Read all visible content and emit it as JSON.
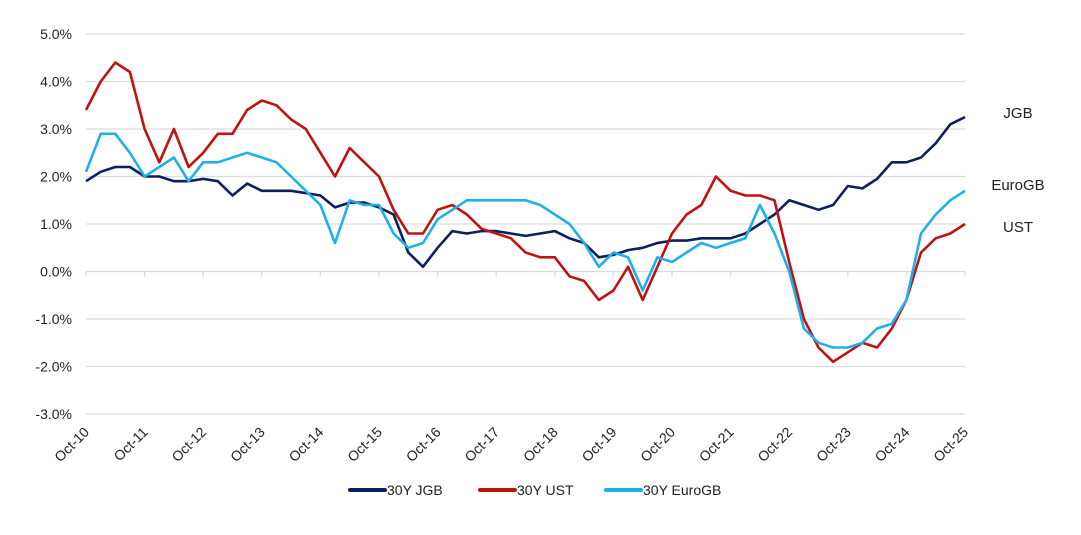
{
  "chart_data": {
    "type": "line",
    "title": "",
    "xlabel": "",
    "ylabel": "",
    "ylim": [
      -3.0,
      5.0
    ],
    "y_ticks": [
      "-3.0%",
      "-2.0%",
      "-1.0%",
      "0.0%",
      "1.0%",
      "2.0%",
      "3.0%",
      "4.0%",
      "5.0%"
    ],
    "x_ticks": [
      "Oct-10",
      "Oct-11",
      "Oct-12",
      "Oct-13",
      "Oct-14",
      "Oct-15",
      "Oct-16",
      "Oct-17",
      "Oct-18",
      "Oct-19",
      "Oct-20",
      "Oct-21",
      "Oct-22",
      "Oct-23",
      "Oct-24",
      "Oct-25"
    ],
    "xlim": [
      "2010-10",
      "2025-10"
    ],
    "grid": "horizontal",
    "legend_placement": "bottom",
    "x": [
      "2010-10",
      "2011-01",
      "2011-04",
      "2011-07",
      "2011-10",
      "2012-01",
      "2012-04",
      "2012-07",
      "2012-10",
      "2013-01",
      "2013-04",
      "2013-07",
      "2013-10",
      "2014-01",
      "2014-04",
      "2014-07",
      "2014-10",
      "2015-01",
      "2015-04",
      "2015-07",
      "2015-10",
      "2016-01",
      "2016-04",
      "2016-07",
      "2016-10",
      "2017-01",
      "2017-04",
      "2017-07",
      "2017-10",
      "2018-01",
      "2018-04",
      "2018-07",
      "2018-10",
      "2019-01",
      "2019-04",
      "2019-07",
      "2019-10",
      "2020-01",
      "2020-04",
      "2020-07",
      "2020-10",
      "2021-01",
      "2021-04",
      "2021-07",
      "2021-10",
      "2022-01",
      "2022-04",
      "2022-07",
      "2022-10",
      "2023-01",
      "2023-04",
      "2023-07",
      "2023-10",
      "2024-01",
      "2024-04",
      "2024-07",
      "2024-10",
      "2025-01",
      "2025-04",
      "2025-07",
      "2025-10"
    ],
    "series": [
      {
        "name": "30Y JGB",
        "end_label": "JGB",
        "color": "#0d1f5c",
        "values": [
          1.9,
          2.1,
          2.2,
          2.2,
          2.0,
          2.0,
          1.9,
          1.9,
          1.95,
          1.9,
          1.6,
          1.85,
          1.7,
          1.7,
          1.7,
          1.65,
          1.6,
          1.35,
          1.45,
          1.45,
          1.35,
          1.2,
          0.4,
          0.1,
          0.5,
          0.85,
          0.8,
          0.85,
          0.85,
          0.8,
          0.75,
          0.8,
          0.85,
          0.7,
          0.6,
          0.3,
          0.35,
          0.45,
          0.5,
          0.6,
          0.65,
          0.65,
          0.7,
          0.7,
          0.7,
          0.8,
          1.0,
          1.2,
          1.5,
          1.4,
          1.3,
          1.4,
          1.8,
          1.75,
          1.95,
          2.3,
          2.3,
          2.4,
          2.7,
          3.1,
          3.25
        ]
      },
      {
        "name": "30Y UST",
        "end_label": "UST",
        "color": "#c0120f",
        "values": [
          3.4,
          4.0,
          4.4,
          4.2,
          3.0,
          2.3,
          3.0,
          2.2,
          2.5,
          2.9,
          2.9,
          3.4,
          3.6,
          3.5,
          3.2,
          3.0,
          2.5,
          2.0,
          2.6,
          2.3,
          2.0,
          1.3,
          0.8,
          0.8,
          1.3,
          1.4,
          1.2,
          0.9,
          0.8,
          0.7,
          0.4,
          0.3,
          0.3,
          -0.1,
          -0.2,
          -0.6,
          -0.4,
          0.1,
          -0.6,
          0.1,
          0.8,
          1.2,
          1.4,
          2.0,
          1.7,
          1.6,
          1.6,
          1.5,
          0.2,
          -1.0,
          -1.6,
          -1.9,
          -1.7,
          -1.5,
          -1.6,
          -1.2,
          -0.6,
          0.4,
          0.7,
          0.8,
          1.0
        ]
      },
      {
        "name": "30Y EuroGB",
        "end_label": "EuroGB",
        "color": "#1fb0ea",
        "values": [
          2.1,
          2.9,
          2.9,
          2.5,
          2.0,
          2.2,
          2.4,
          1.9,
          2.3,
          2.3,
          2.4,
          2.5,
          2.4,
          2.3,
          2.0,
          1.7,
          1.4,
          0.6,
          1.5,
          1.4,
          1.4,
          0.8,
          0.5,
          0.6,
          1.1,
          1.3,
          1.5,
          1.5,
          1.5,
          1.5,
          1.5,
          1.4,
          1.2,
          1.0,
          0.6,
          0.1,
          0.4,
          0.3,
          -0.4,
          0.3,
          0.2,
          0.4,
          0.6,
          0.5,
          0.6,
          0.7,
          1.4,
          0.8,
          0.0,
          -1.2,
          -1.5,
          -1.6,
          -1.6,
          -1.5,
          -1.2,
          -1.1,
          -0.6,
          0.8,
          1.2,
          1.5,
          1.7
        ]
      }
    ]
  }
}
